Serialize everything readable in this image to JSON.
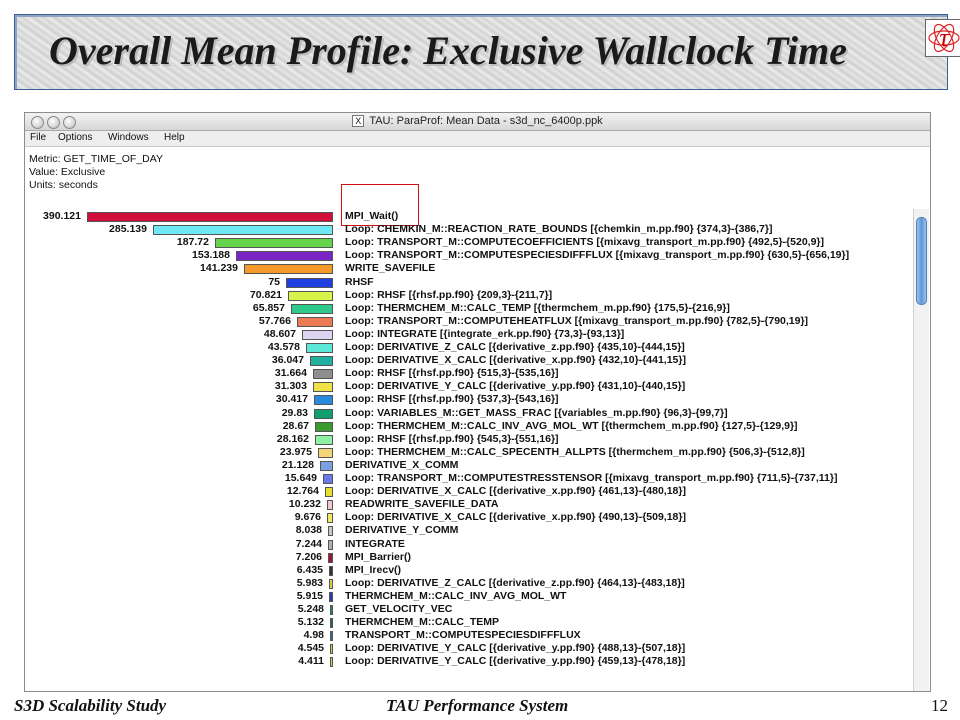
{
  "slide": {
    "title": "Overall Mean Profile: Exclusive Wallclock Time",
    "logo_glyph": "τ",
    "footer_left": "S3D Scalability Study",
    "footer_center": "TAU Performance System",
    "page_number": "12"
  },
  "window": {
    "title_badge": "X",
    "title": "TAU: ParaProf: Mean Data - s3d_nc_6400p.ppk",
    "menu": [
      "File",
      "Options",
      "Windows",
      "Help"
    ]
  },
  "info": {
    "metric": "Metric: GET_TIME_OF_DAY",
    "value": "Value: Exclusive",
    "units": "Units: seconds"
  },
  "colors": {
    "highlight": "#d01010",
    "scroll": "#5f95d6"
  },
  "chart_data": {
    "type": "bar",
    "orientation": "horizontal",
    "highlighted": "MPI_Wait()",
    "rows": [
      {
        "value": "390.121",
        "label": "MPI_Wait()",
        "color": "#d0103a"
      },
      {
        "value": "285.139",
        "label": "Loop: CHEMKIN_M::REACTION_RATE_BOUNDS [{chemkin_m.pp.f90} {374,3}-{386,7}]",
        "color": "#6ee8f2"
      },
      {
        "value": "187.72",
        "label": "Loop: TRANSPORT_M::COMPUTECOEFFICIENTS [{mixavg_transport_m.pp.f90} {492,5}-{520,9}]",
        "color": "#66d44a"
      },
      {
        "value": "153.188",
        "label": "Loop: TRANSPORT_M::COMPUTESPECIESDIFFFLUX [{mixavg_transport_m.pp.f90} {630,5}-{656,19}]",
        "color": "#7a24c4"
      },
      {
        "value": "141.239",
        "label": "WRITE_SAVEFILE",
        "color": "#f59a2a"
      },
      {
        "value": "75",
        "label": "RHSF",
        "color": "#1f3fe0"
      },
      {
        "value": "70.821",
        "label": "Loop: RHSF [{rhsf.pp.f90} {209,3}-{211,7}]",
        "color": "#d8f24a"
      },
      {
        "value": "65.857",
        "label": "Loop: THERMCHEM_M::CALC_TEMP [{thermchem_m.pp.f90} {175,5}-{216,9}]",
        "color": "#2ec88a"
      },
      {
        "value": "57.766",
        "label": "Loop: TRANSPORT_M::COMPUTEHEATFLUX [{mixavg_transport_m.pp.f90} {782,5}-{790,19}]",
        "color": "#ec7a54"
      },
      {
        "value": "48.607",
        "label": "Loop: INTEGRATE [{integrate_erk.pp.f90} {73,3}-{93,13}]",
        "color": "#dcd4f0"
      },
      {
        "value": "43.578",
        "label": "Loop: DERIVATIVE_Z_CALC [{derivative_z.pp.f90} {435,10}-{444,15}]",
        "color": "#5ce8d8"
      },
      {
        "value": "36.047",
        "label": "Loop: DERIVATIVE_X_CALC [{derivative_x.pp.f90} {432,10}-{441,15}]",
        "color": "#22b0a0"
      },
      {
        "value": "31.664",
        "label": "Loop: RHSF [{rhsf.pp.f90} {515,3}-{535,16}]",
        "color": "#8e8e8e"
      },
      {
        "value": "31.303",
        "label": "Loop: DERIVATIVE_Y_CALC [{derivative_y.pp.f90} {431,10}-{440,15}]",
        "color": "#f0e04a"
      },
      {
        "value": "30.417",
        "label": "Loop: RHSF [{rhsf.pp.f90} {537,3}-{543,16}]",
        "color": "#2a8ae0"
      },
      {
        "value": "29.83",
        "label": "Loop: VARIABLES_M::GET_MASS_FRAC [{variables_m.pp.f90} {96,3}-{99,7}]",
        "color": "#10a070"
      },
      {
        "value": "28.67",
        "label": "Loop: THERMCHEM_M::CALC_INV_AVG_MOL_WT [{thermchem_m.pp.f90} {127,5}-{129,9}]",
        "color": "#3a9a2e"
      },
      {
        "value": "28.162",
        "label": "Loop: RHSF [{rhsf.pp.f90} {545,3}-{551,16}]",
        "color": "#8ef0a0"
      },
      {
        "value": "23.975",
        "label": "Loop: THERMCHEM_M::CALC_SPECENTH_ALLPTS [{thermchem_m.pp.f90} {506,3}-{512,8}]",
        "color": "#f4d478"
      },
      {
        "value": "21.128",
        "label": "DERIVATIVE_X_COMM",
        "color": "#7aa0e0"
      },
      {
        "value": "15.649",
        "label": "Loop: TRANSPORT_M::COMPUTESTRESSTENSOR [{mixavg_transport_m.pp.f90} {711,5}-{737,11}]",
        "color": "#6a7ae6"
      },
      {
        "value": "12.764",
        "label": "Loop: DERIVATIVE_X_CALC [{derivative_x.pp.f90} {461,13}-{480,18}]",
        "color": "#e8e030"
      },
      {
        "value": "10.232",
        "label": "READWRITE_SAVEFILE_DATA",
        "color": "#f4c8c8"
      },
      {
        "value": "9.676",
        "label": "Loop: DERIVATIVE_X_CALC [{derivative_x.pp.f90} {490,13}-{509,18}]",
        "color": "#f0ea60"
      },
      {
        "value": "8.038",
        "label": "DERIVATIVE_Y_COMM",
        "color": "#c8c8c8"
      },
      {
        "value": "7.244",
        "label": "INTEGRATE",
        "color": "#b0b0b0"
      },
      {
        "value": "7.206",
        "label": "MPI_Barrier()",
        "color": "#a01030"
      },
      {
        "value": "6.435",
        "label": "MPI_Irecv()",
        "color": "#303030"
      },
      {
        "value": "5.983",
        "label": "Loop: DERIVATIVE_Z_CALC [{derivative_z.pp.f90} {464,13}-{483,18}]",
        "color": "#e0d040"
      },
      {
        "value": "5.915",
        "label": "THERMCHEM_M::CALC_INV_AVG_MOL_WT",
        "color": "#2a3ab0"
      },
      {
        "value": "5.248",
        "label": "GET_VELOCITY_VEC",
        "color": "#1a8a5a"
      },
      {
        "value": "5.132",
        "label": "THERMCHEM_M::CALC_TEMP",
        "color": "#1a6a3a"
      },
      {
        "value": "4.98",
        "label": "TRANSPORT_M::COMPUTESPECIESDIFFFLUX",
        "color": "#3a6a9a"
      },
      {
        "value": "4.545",
        "label": "Loop: DERIVATIVE_Y_CALC [{derivative_y.pp.f90} {488,13}-{507,18}]",
        "color": "#d8c830"
      },
      {
        "value": "4.411",
        "label": "Loop: DERIVATIVE_Y_CALC [{derivative_y.pp.f90} {459,13}-{478,18}]",
        "color": "#c8d040"
      }
    ]
  }
}
